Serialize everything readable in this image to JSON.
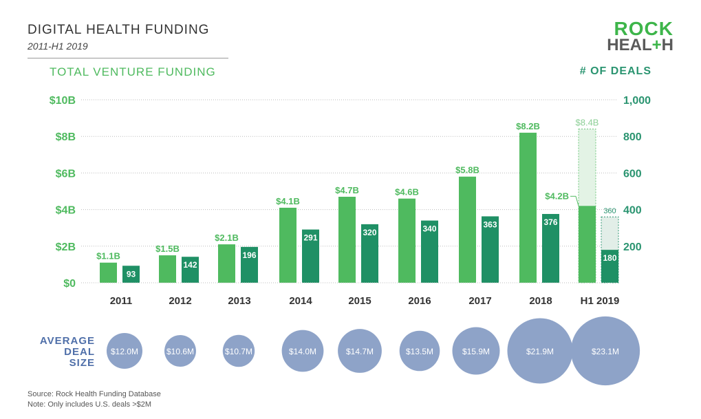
{
  "header": {
    "title": "DIGITAL HEALTH FUNDING",
    "subtitle": "2011-H1 2019",
    "logo_line1": "ROCK",
    "logo_line2a": "HEAL",
    "logo_plus": "+",
    "logo_line2b": "H"
  },
  "chart_data": {
    "type": "bar",
    "title": "DIGITAL HEALTH FUNDING",
    "left_axis_label": "TOTAL VENTURE FUNDING",
    "right_axis_label": "# OF DEALS",
    "categories": [
      "2011",
      "2012",
      "2013",
      "2014",
      "2015",
      "2016",
      "2017",
      "2018",
      "H1 2019"
    ],
    "left_ticks": [
      "$0",
      "$2B",
      "$4B",
      "$6B",
      "$8B",
      "$10B"
    ],
    "right_ticks": [
      "200",
      "400",
      "600",
      "800",
      "1,000"
    ],
    "ylim_funding": [
      0,
      10
    ],
    "ylim_deals": [
      0,
      1000
    ],
    "series": [
      {
        "name": "Total venture funding ($B)",
        "values": [
          1.1,
          1.5,
          2.1,
          4.1,
          4.7,
          4.6,
          5.8,
          8.2,
          4.2
        ],
        "labels": [
          "$1.1B",
          "$1.5B",
          "$2.1B",
          "$4.1B",
          "$4.7B",
          "$4.6B",
          "$5.8B",
          "$8.2B",
          "$4.2B"
        ],
        "color": "#4fba5f"
      },
      {
        "name": "# of deals",
        "values": [
          93,
          142,
          196,
          291,
          320,
          340,
          363,
          376,
          180
        ],
        "labels": [
          "93",
          "142",
          "196",
          "291",
          "320",
          "340",
          "363",
          "376",
          "180"
        ],
        "color": "#1f9065"
      }
    ],
    "projection": {
      "funding": 8.4,
      "funding_label": "$8.4B",
      "deals": 360,
      "deals_label": "360"
    },
    "avg_deal_size": {
      "label_lines": [
        "AVERAGE",
        "DEAL",
        "SIZE"
      ],
      "values": [
        12.0,
        10.6,
        10.7,
        14.0,
        14.7,
        13.5,
        15.9,
        21.9,
        23.1
      ],
      "labels": [
        "$12.0M",
        "$10.6M",
        "$10.7M",
        "$14.0M",
        "$14.7M",
        "$13.5M",
        "$15.9M",
        "$21.9M",
        "$23.1M"
      ],
      "color": "#8ea3c8"
    }
  },
  "footer": {
    "source": "Source: Rock Health Funding Database",
    "note": "Note: Only includes U.S. deals >$2M"
  }
}
